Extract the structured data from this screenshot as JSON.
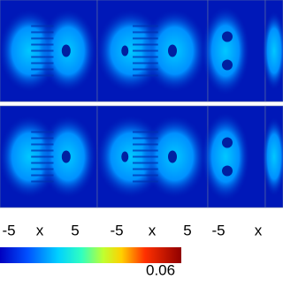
{
  "x_axis_labels": [
    "-5",
    "x",
    "5",
    "-5",
    "x",
    "5",
    "-5",
    "x"
  ],
  "colorbar": {
    "max_label": "0.06"
  }
}
